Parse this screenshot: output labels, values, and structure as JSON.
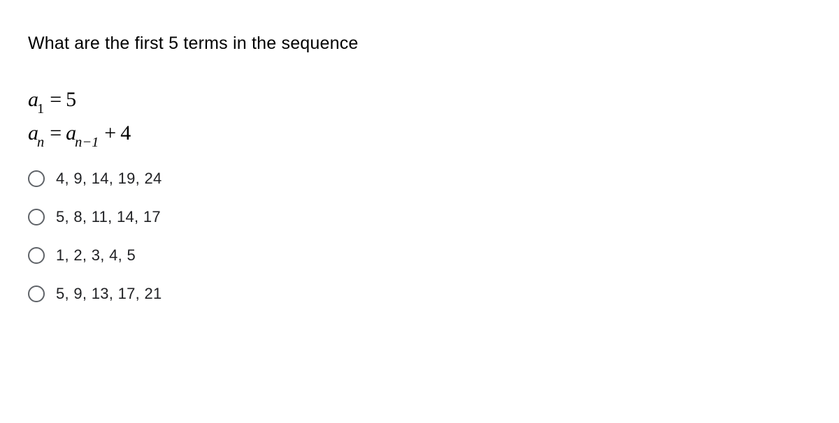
{
  "question": {
    "prompt": "What are the first 5 terms in the sequence",
    "formula1": {
      "var": "a",
      "sub": "1",
      "eq": "=",
      "rhs": "5"
    },
    "formula2": {
      "var_l": "a",
      "sub_l": "n",
      "eq": "=",
      "var_r": "a",
      "sub_r": "n−1",
      "plus": "+",
      "const": "4"
    }
  },
  "options": [
    {
      "label": "4, 9, 14, 19, 24"
    },
    {
      "label": "5, 8, 11, 14, 17"
    },
    {
      "label": "1, 2, 3, 4, 5"
    },
    {
      "label": "5, 9, 13, 17, 21"
    }
  ],
  "style": {
    "background": "#ffffff",
    "text_color": "#000000",
    "option_text_color": "#202124",
    "radio_border_color": "#5f6368",
    "question_fontsize": 25,
    "formula_fontsize": 30,
    "option_fontsize": 22
  }
}
